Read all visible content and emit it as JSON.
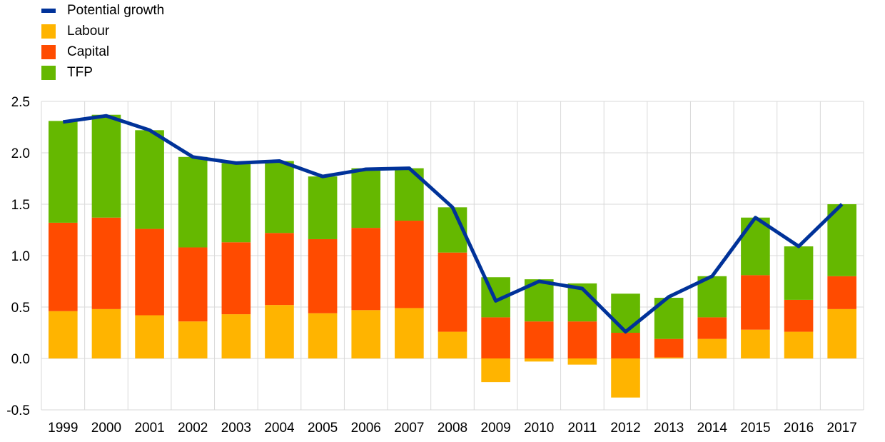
{
  "chart_data": {
    "type": "bar",
    "stacked": true,
    "categories": [
      "1999",
      "2000",
      "2001",
      "2002",
      "2003",
      "2004",
      "2005",
      "2006",
      "2007",
      "2008",
      "2009",
      "2010",
      "2011",
      "2012",
      "2013",
      "2014",
      "2015",
      "2016",
      "2017"
    ],
    "series": [
      {
        "name": "Labour",
        "color": "#ffb400",
        "values": [
          0.46,
          0.48,
          0.42,
          0.36,
          0.43,
          0.52,
          0.44,
          0.47,
          0.49,
          0.26,
          -0.23,
          -0.03,
          -0.06,
          -0.38,
          0.01,
          0.19,
          0.28,
          0.26,
          0.48
        ]
      },
      {
        "name": "Capital",
        "color": "#ff4b00",
        "values": [
          0.86,
          0.89,
          0.84,
          0.72,
          0.7,
          0.7,
          0.72,
          0.8,
          0.85,
          0.77,
          0.4,
          0.36,
          0.36,
          0.25,
          0.18,
          0.21,
          0.53,
          0.31,
          0.32
        ]
      },
      {
        "name": "TFP",
        "color": "#65b800",
        "values": [
          0.99,
          1.0,
          0.96,
          0.88,
          0.77,
          0.7,
          0.61,
          0.58,
          0.51,
          0.44,
          0.39,
          0.41,
          0.37,
          0.38,
          0.4,
          0.4,
          0.56,
          0.52,
          0.7
        ]
      }
    ],
    "line": {
      "name": "Potential growth",
      "color": "#003299",
      "values": [
        2.3,
        2.36,
        2.22,
        1.96,
        1.9,
        1.92,
        1.77,
        1.84,
        1.85,
        1.47,
        0.56,
        0.75,
        0.68,
        0.26,
        0.6,
        0.8,
        1.37,
        1.09,
        1.5
      ]
    },
    "ylim": [
      -0.5,
      2.5
    ],
    "yticks": [
      "2.5",
      "2.0",
      "1.5",
      "1.0",
      "0.5",
      "0.0",
      "-0.5"
    ],
    "ytick_values": [
      2.5,
      2.0,
      1.5,
      1.0,
      0.5,
      0.0,
      -0.5
    ],
    "grid": true,
    "legend_position": "top-left"
  },
  "legend": {
    "items": [
      {
        "label": "Potential growth",
        "color": "#003299",
        "kind": "line"
      },
      {
        "label": "Labour",
        "color": "#ffb400",
        "kind": "box"
      },
      {
        "label": "Capital",
        "color": "#ff4b00",
        "kind": "box"
      },
      {
        "label": "TFP",
        "color": "#65b800",
        "kind": "box"
      }
    ]
  }
}
